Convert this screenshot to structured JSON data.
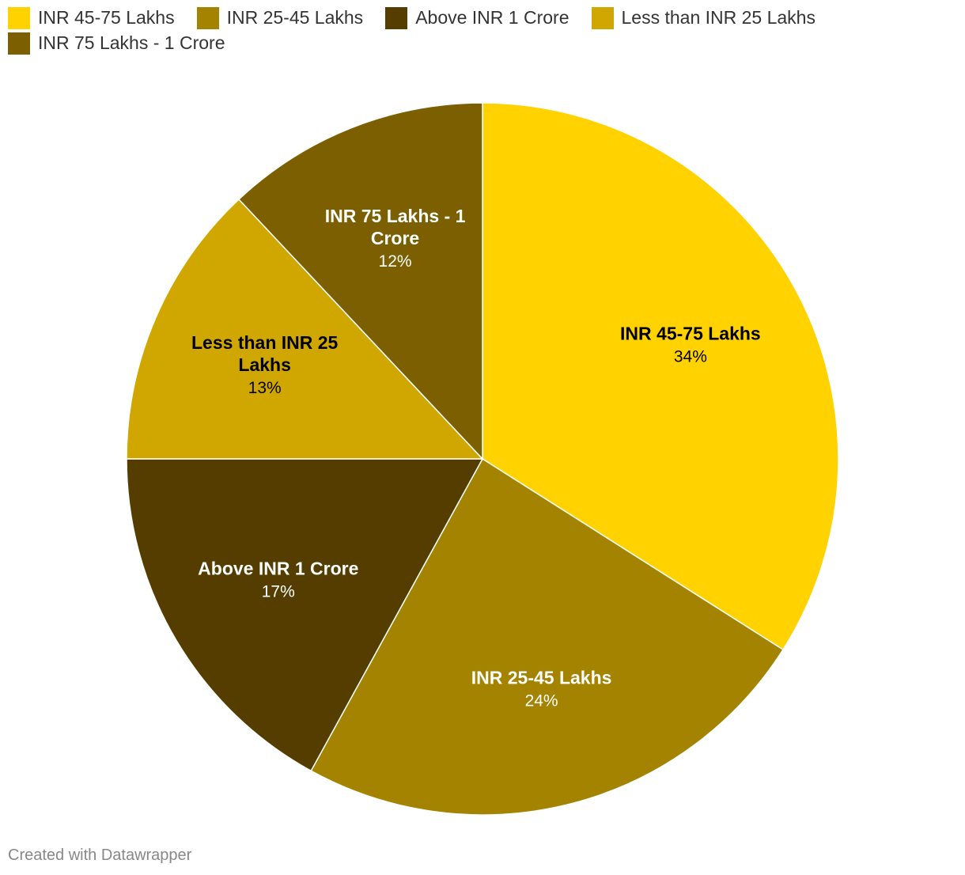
{
  "chart_data": {
    "type": "pie",
    "slices": [
      {
        "name": "INR 45-75 Lakhs",
        "label_lines": [
          "INR 45-75 Lakhs"
        ],
        "value": 34,
        "value_label": "34%",
        "color": "#FFD200",
        "text_color": "#000000"
      },
      {
        "name": "INR 25-45 Lakhs",
        "label_lines": [
          "INR 25-45 Lakhs"
        ],
        "value": 24,
        "value_label": "24%",
        "color": "#A38300",
        "text_color": "#ffffff"
      },
      {
        "name": "Above INR 1 Crore",
        "label_lines": [
          "Above INR 1 Crore"
        ],
        "value": 17,
        "value_label": "17%",
        "color": "#553D00",
        "text_color": "#ffffff"
      },
      {
        "name": "Less than INR 25 Lakhs",
        "label_lines": [
          "Less than INR 25",
          "Lakhs"
        ],
        "value": 13,
        "value_label": "13%",
        "color": "#D0A700",
        "text_color": "#000000"
      },
      {
        "name": "INR 75 Lakhs - 1 Crore",
        "label_lines": [
          "INR 75 Lakhs - 1",
          "Crore"
        ],
        "value": 12,
        "value_label": "12%",
        "color": "#7C5F00",
        "text_color": "#ffffff"
      }
    ],
    "legend": {
      "placement": "top-left",
      "entries": [
        "INR 45-75 Lakhs",
        "INR 25-45 Lakhs",
        "Above INR 1 Crore",
        "Less than INR 25 Lakhs",
        "INR 75 Lakhs - 1 Crore"
      ]
    },
    "start_direction": "top",
    "direction": "clockwise"
  },
  "footer": {
    "credit": "Created with Datawrapper"
  }
}
